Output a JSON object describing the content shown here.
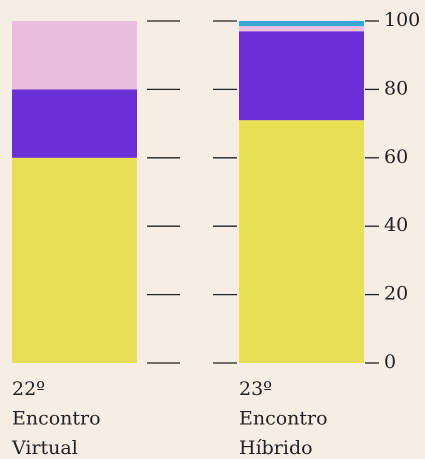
{
  "chart_data": {
    "type": "stacked-bar",
    "categories": [
      [
        "22º",
        "Encontro",
        "Virtual"
      ],
      [
        "23º",
        "Encontro",
        "Híbrido"
      ]
    ],
    "series": [
      {
        "color": "#e9e155",
        "values": [
          60,
          71
        ]
      },
      {
        "color": "#6a2fd6",
        "values": [
          20,
          26
        ]
      },
      {
        "color": "#ebbedf",
        "values": [
          20,
          1.5
        ]
      },
      {
        "color": "#3aa6d8",
        "values": [
          0,
          1.5
        ]
      }
    ],
    "ylim": [
      0,
      100
    ],
    "yticks": [
      0,
      20,
      40,
      60,
      80,
      100
    ],
    "grid": true,
    "axis_side": "right"
  }
}
